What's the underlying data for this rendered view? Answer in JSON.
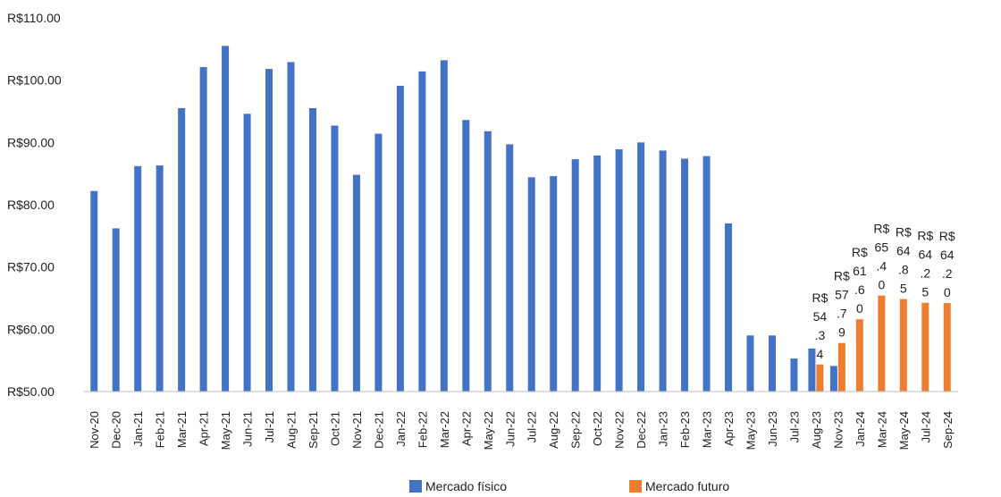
{
  "chart_data": {
    "type": "bar",
    "y_prefix": "R$",
    "ylim": [
      50,
      110
    ],
    "y_ticks": [
      "R$110.00",
      "R$100.00",
      "R$90.00",
      "R$80.00",
      "R$70.00",
      "R$60.00",
      "R$50.00"
    ],
    "y_tick_values": [
      110,
      100,
      90,
      80,
      70,
      60,
      50
    ],
    "grid": false,
    "legend_position": "bottom",
    "categories": [
      "Nov-20",
      "Dec-20",
      "Jan-21",
      "Feb-21",
      "Mar-21",
      "Apr-21",
      "May-21",
      "Jun-21",
      "Jul-21",
      "Aug-21",
      "Sep-21",
      "Oct-21",
      "Nov-21",
      "Dec-21",
      "Jan-22",
      "Feb-22",
      "Mar-22",
      "Apr-22",
      "May-22",
      "Jun-22",
      "Jul-22",
      "Aug-22",
      "Sep-22",
      "Oct-22",
      "Nov-22",
      "Dec-22",
      "Jan-23",
      "Feb-23",
      "Mar-23",
      "Apr-23",
      "May-23",
      "Jun-23",
      "Jul-23",
      "Aug-23",
      "Nov-23",
      "Jan-24",
      "Mar-24",
      "May-24",
      "Jul-24",
      "Sep-24"
    ],
    "series": [
      {
        "name": "Mercado físico",
        "color": "#4472c4",
        "values": [
          82.2,
          76.2,
          86.2,
          86.3,
          95.5,
          102.1,
          105.5,
          94.6,
          101.8,
          102.9,
          95.5,
          92.7,
          84.8,
          91.4,
          99.1,
          101.4,
          103.2,
          93.6,
          91.8,
          89.7,
          84.4,
          84.6,
          87.3,
          87.9,
          88.9,
          90.0,
          88.7,
          87.4,
          87.8,
          77.0,
          59.0,
          59.0,
          55.3,
          56.9,
          54.1,
          null,
          null,
          null,
          null,
          null
        ]
      },
      {
        "name": "Mercado futuro",
        "color": "#ed7d31",
        "values": [
          null,
          null,
          null,
          null,
          null,
          null,
          null,
          null,
          null,
          null,
          null,
          null,
          null,
          null,
          null,
          null,
          null,
          null,
          null,
          null,
          null,
          null,
          null,
          null,
          null,
          null,
          null,
          null,
          null,
          null,
          null,
          null,
          null,
          54.34,
          57.79,
          61.6,
          65.4,
          64.85,
          64.25,
          64.2
        ],
        "data_labels": [
          null,
          null,
          null,
          null,
          null,
          null,
          null,
          null,
          null,
          null,
          null,
          null,
          null,
          null,
          null,
          null,
          null,
          null,
          null,
          null,
          null,
          null,
          null,
          null,
          null,
          null,
          null,
          null,
          null,
          null,
          null,
          null,
          null,
          [
            "R$",
            "54",
            ".3",
            "4"
          ],
          [
            "R$",
            "57",
            ".7",
            "9"
          ],
          [
            "R$",
            "61",
            ".6",
            "0"
          ],
          [
            "R$",
            "65",
            ".4",
            "0"
          ],
          [
            "R$",
            "64",
            ".8",
            "5"
          ],
          [
            "R$",
            "64",
            ".2",
            "5"
          ],
          [
            "R$",
            "64",
            ".2",
            "0"
          ]
        ]
      }
    ]
  }
}
